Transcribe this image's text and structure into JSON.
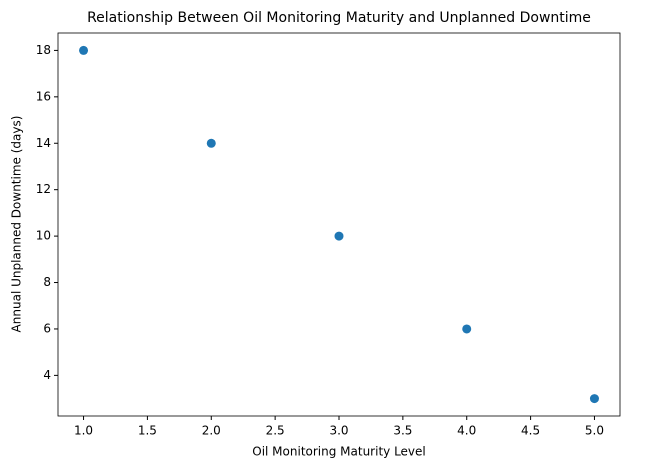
{
  "chart_data": {
    "type": "scatter",
    "title": "Relationship Between Oil Monitoring Maturity and Unplanned Downtime",
    "x_label": "Oil Monitoring Maturity Level",
    "y_label": "Annual Unplanned Downtime (days)",
    "x": [
      1,
      2,
      3,
      4,
      5
    ],
    "values": [
      18,
      14,
      10,
      6,
      3
    ],
    "color": "#1f77b4",
    "xlim": [
      0.8,
      5.2
    ],
    "ylim": [
      2.25,
      18.75
    ],
    "xticks": [
      {
        "value": 1,
        "label": "1.0"
      },
      {
        "value": 1.5,
        "label": "1.5"
      },
      {
        "value": 2,
        "label": "2.0"
      },
      {
        "value": 2.5,
        "label": "2.5"
      },
      {
        "value": 3,
        "label": "3.0"
      },
      {
        "value": 3.5,
        "label": "3.5"
      },
      {
        "value": 4,
        "label": "4.0"
      },
      {
        "value": 4.5,
        "label": "4.5"
      },
      {
        "value": 5,
        "label": "5.0"
      }
    ],
    "yticks": [
      4,
      6,
      8,
      10,
      12,
      14,
      16,
      18
    ],
    "grid": false
  }
}
